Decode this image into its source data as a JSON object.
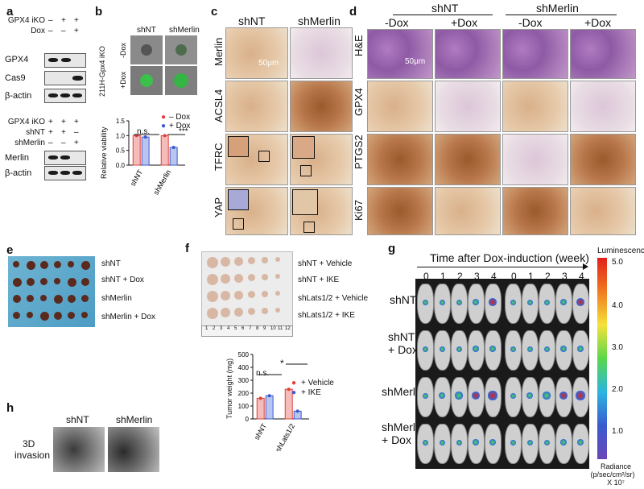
{
  "panel_labels": {
    "a": "a",
    "b": "b",
    "c": "c",
    "d": "d",
    "e": "e",
    "f": "f",
    "g": "g",
    "h": "h"
  },
  "panel_a": {
    "top_rows": [
      {
        "label": "GPX4 iKO",
        "signs": [
          "–",
          "+",
          "+"
        ]
      },
      {
        "label": "Dox",
        "signs": [
          "–",
          "–",
          "+"
        ]
      }
    ],
    "top_blots": [
      "GPX4",
      "Cas9",
      "β-actin"
    ],
    "bottom_rows": [
      {
        "label": "GPX4 iKO",
        "signs": [
          "+",
          "+",
          "+"
        ]
      },
      {
        "label": "shNT",
        "signs": [
          "+",
          "+",
          "–"
        ]
      },
      {
        "label": "shMerlin",
        "signs": [
          "–",
          "–",
          "+"
        ]
      }
    ],
    "bottom_blots": [
      "Merlin",
      "β-actin"
    ]
  },
  "panel_b": {
    "col_labels": [
      "shNT",
      "shMerlin"
    ],
    "side_label": "211H-Gpx4 iKO",
    "row_labels": [
      "-Dox",
      "+Dox"
    ],
    "legend": [
      "– Dox",
      "+ Dox"
    ],
    "sig": [
      "n.s.",
      "***"
    ],
    "ylabel": "Relative viability",
    "yticks": [
      "0.0",
      "0.5",
      "1.0",
      "1.5"
    ]
  },
  "panel_c": {
    "col_labels": [
      "shNT",
      "shMerlin"
    ],
    "row_labels": [
      "Merlin",
      "ACSL4",
      "TFRC",
      "YAP"
    ],
    "scale": "50μm"
  },
  "panel_d": {
    "groups": [
      "shNT",
      "shMerlin"
    ],
    "cols": [
      "-Dox",
      "+Dox",
      "-Dox",
      "+Dox"
    ],
    "row_labels": [
      "H&E",
      "GPX4",
      "PTGS2",
      "Ki67"
    ],
    "scale": "50μm"
  },
  "panel_e": {
    "row_labels": [
      "shNT",
      "shNT + Dox",
      "shMerlin",
      "shMerlin + Dox"
    ]
  },
  "panel_f": {
    "row_labels": [
      "shNT + Vehicle",
      "shNT + IKE",
      "shLats1/2 + Vehicle",
      "shLats1/2 + IKE"
    ],
    "ruler": [
      "1",
      "2",
      "3",
      "4",
      "5",
      "6",
      "7",
      "8",
      "9",
      "10",
      "11",
      "12"
    ],
    "legend": [
      "+ Vehicle",
      "+ IKE"
    ],
    "sig": [
      "n.s.",
      "*"
    ],
    "ylabel": "Tumor weight (mg)",
    "yticks": [
      "0",
      "100",
      "200",
      "300",
      "400",
      "500"
    ]
  },
  "panel_g": {
    "title": "Time after Dox-induction (week)",
    "weeks": [
      "0",
      "1",
      "2",
      "3",
      "4",
      "0",
      "1",
      "2",
      "3",
      "4"
    ],
    "row_labels": [
      "shNT",
      "shNT\n+ Dox",
      "shMerlin",
      "shMerlin\n+ Dox"
    ],
    "colorbar_title": "Luminescence",
    "colorbar_ticks": [
      "5.0",
      "4.0",
      "3.0",
      "2.0",
      "1.0"
    ],
    "colorbar_unit": [
      "Radiance",
      "(p/sec/cm²/sr)",
      "X 10⁷"
    ]
  },
  "panel_h": {
    "col_labels": [
      "shNT",
      "shMerlin"
    ],
    "side_label": [
      "3D",
      "invasion"
    ]
  },
  "chart_data": [
    {
      "type": "bar",
      "ylabel": "Relative viability",
      "ylim": [
        0,
        1.5
      ],
      "categories": [
        "shNT",
        "shMerlin"
      ],
      "series": [
        {
          "name": "– Dox",
          "color": "#e0403a",
          "values": [
            1.0,
            1.0
          ]
        },
        {
          "name": "+ Dox",
          "color": "#3a5ad0",
          "values": [
            0.95,
            0.6
          ]
        }
      ]
    },
    {
      "type": "bar",
      "ylabel": "Tumor weight (mg)",
      "ylim": [
        0,
        500
      ],
      "categories": [
        "shNT",
        "shLats1/2"
      ],
      "series": [
        {
          "name": "+ Vehicle",
          "color": "#e0403a",
          "values": [
            160,
            230
          ]
        },
        {
          "name": "+ IKE",
          "color": "#3a5ad0",
          "values": [
            180,
            60
          ]
        }
      ]
    }
  ]
}
